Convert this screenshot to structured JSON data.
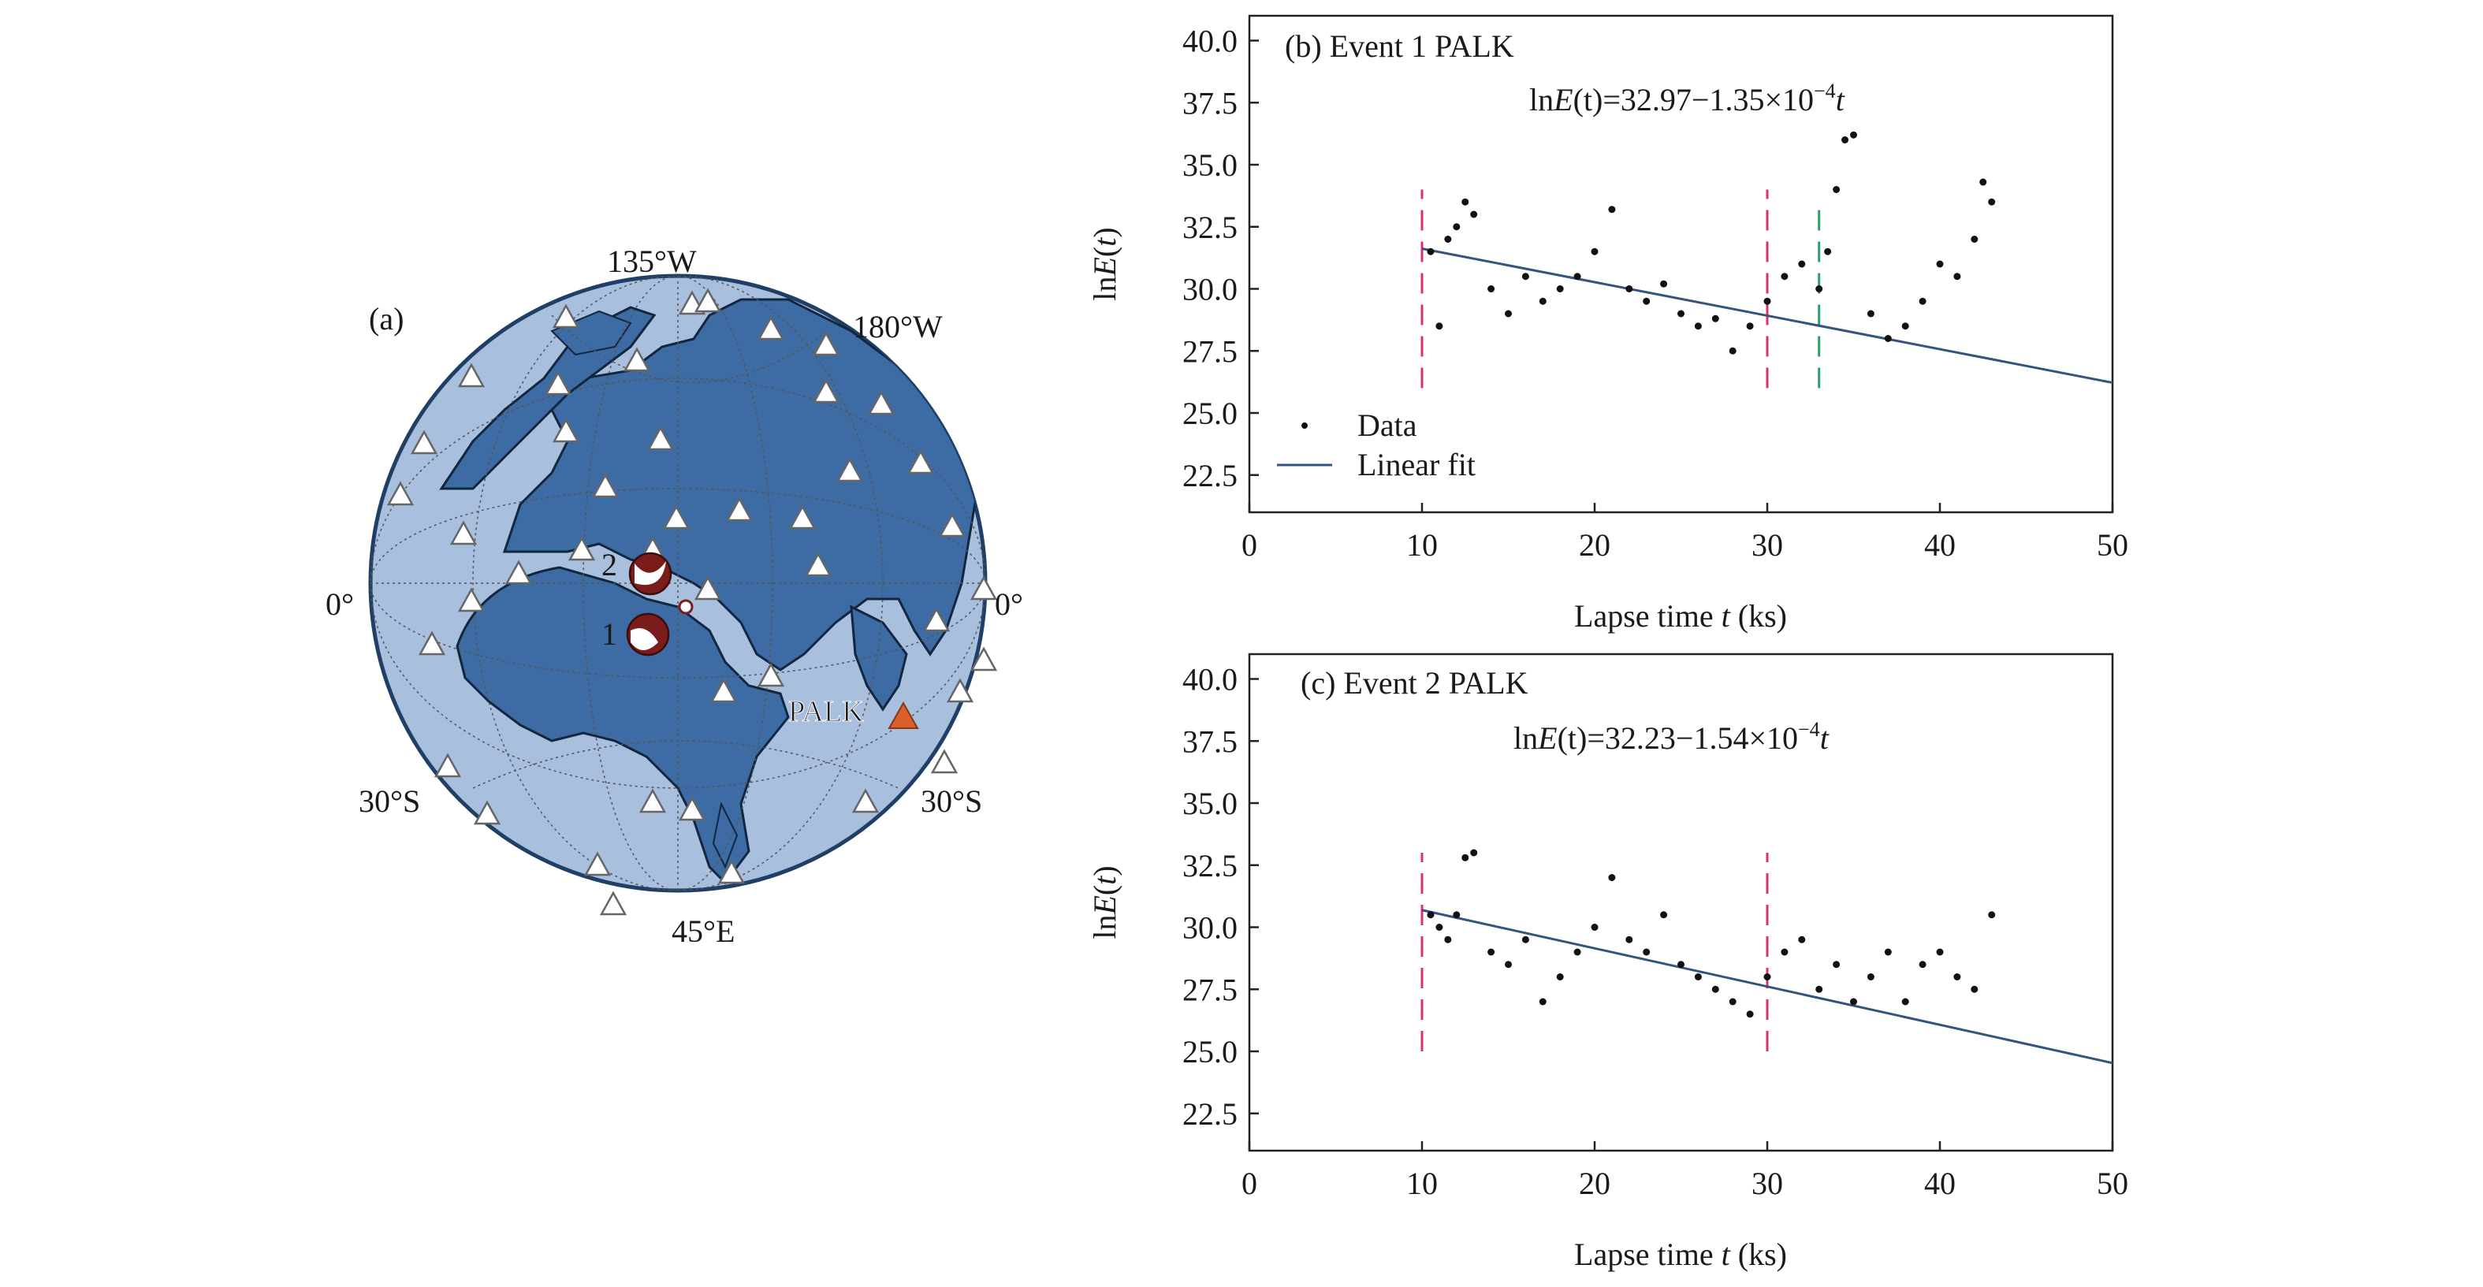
{
  "map": {
    "panel_label": "(a)",
    "lon_labels": [
      "135°W",
      "180°W",
      "0°",
      "0°",
      "45°E"
    ],
    "lat_labels": [
      "30°S",
      "30°S"
    ],
    "station_name": "PALK",
    "event_labels": [
      "1",
      "2"
    ],
    "colors": {
      "land": "#3d6ba3",
      "ocean": "#a9bfde",
      "station": "#d95f2b",
      "event": "#7a1c1c"
    }
  },
  "chart_data": [
    {
      "type": "scatter",
      "panel_label": "(b) Event 1 PALK",
      "equation": {
        "pre": "ln",
        "E": "E",
        "t1": "(t)",
        "mid": "=32.97−1.35×10",
        "exp": "−4",
        "t2": "t"
      },
      "xlabel_pre": "Lapse time ",
      "xlabel_var": "t",
      "xlabel_post": " (ks)",
      "ylabel": "lnE(t)",
      "xlim": [
        0,
        50
      ],
      "ylim": [
        21.0,
        41.0
      ],
      "xticks": [
        0,
        10,
        20,
        30,
        40,
        50
      ],
      "yticks": [
        22.5,
        25.0,
        27.5,
        30.0,
        32.5,
        35.0,
        37.5,
        40.0
      ],
      "fit": {
        "intercept": 32.97,
        "slope_per_ks": -0.135
      },
      "markers": [
        {
          "x": 10,
          "y0": 26.0,
          "y1": 34.0,
          "color": "#d6336c"
        },
        {
          "x": 30,
          "y0": 26.0,
          "y1": 34.0,
          "color": "#d6336c"
        },
        {
          "x": 33,
          "y0": 26.0,
          "y1": 33.5,
          "color": "#2e9e6b"
        }
      ],
      "legend": {
        "data_label": "Data",
        "fit_label": "Linear fit",
        "position": "lower-left"
      },
      "series": [
        {
          "name": "Data",
          "x": [
            10.5,
            11.0,
            11.5,
            12.0,
            12.5,
            13.0,
            14.0,
            15.0,
            16.0,
            17.0,
            18.0,
            19.0,
            20.0,
            21.0,
            22.0,
            23.0,
            24.0,
            25.0,
            26.0,
            27.0,
            28.0,
            29.0,
            30.0,
            31.0,
            32.0,
            33.0,
            33.5,
            34.0,
            34.5,
            35.0,
            36.0,
            37.0,
            38.0,
            39.0,
            40.0,
            41.0,
            42.0,
            42.5,
            43.0
          ],
          "y": [
            31.5,
            28.5,
            32.0,
            32.5,
            33.5,
            33.0,
            30.0,
            29.0,
            30.5,
            29.5,
            30.0,
            30.5,
            31.5,
            33.2,
            30.0,
            29.5,
            30.2,
            29.0,
            28.5,
            28.8,
            27.5,
            28.5,
            29.5,
            30.5,
            31.0,
            30.0,
            31.5,
            34.0,
            36.0,
            36.2,
            29.0,
            28.0,
            28.5,
            29.5,
            31.0,
            30.5,
            32.0,
            34.3,
            33.5
          ]
        }
      ]
    },
    {
      "type": "scatter",
      "panel_label": "(c) Event 2 PALK",
      "equation": {
        "pre": "ln",
        "E": "E",
        "t1": "(t)",
        "mid": "=32.23−1.54×10",
        "exp": "−4",
        "t2": "t"
      },
      "xlabel_pre": "Lapse time ",
      "xlabel_var": "t",
      "xlabel_post": " (ks)",
      "ylabel": "lnE(t)",
      "xlim": [
        0,
        50
      ],
      "ylim": [
        21.0,
        41.0
      ],
      "xticks": [
        0,
        10,
        20,
        30,
        40,
        50
      ],
      "yticks": [
        22.5,
        25.0,
        27.5,
        30.0,
        32.5,
        35.0,
        37.5,
        40.0
      ],
      "fit": {
        "intercept": 32.23,
        "slope_per_ks": -0.154
      },
      "markers": [
        {
          "x": 10,
          "y0": 25.0,
          "y1": 33.0,
          "color": "#d6336c"
        },
        {
          "x": 30,
          "y0": 25.0,
          "y1": 33.0,
          "color": "#d6336c"
        }
      ],
      "series": [
        {
          "name": "Data",
          "x": [
            10.5,
            11.0,
            11.5,
            12.0,
            12.5,
            13.0,
            14.0,
            15.0,
            16.0,
            17.0,
            18.0,
            19.0,
            20.0,
            21.0,
            22.0,
            23.0,
            24.0,
            25.0,
            26.0,
            27.0,
            28.0,
            29.0,
            30.0,
            31.0,
            32.0,
            33.0,
            34.0,
            35.0,
            36.0,
            37.0,
            38.0,
            39.0,
            40.0,
            41.0,
            42.0,
            43.0
          ],
          "y": [
            30.5,
            30.0,
            29.5,
            30.5,
            32.8,
            33.0,
            29.0,
            28.5,
            29.5,
            27.0,
            28.0,
            29.0,
            30.0,
            32.0,
            29.5,
            29.0,
            30.5,
            28.5,
            28.0,
            27.5,
            27.0,
            26.5,
            28.0,
            29.0,
            29.5,
            27.5,
            28.5,
            27.0,
            28.0,
            29.0,
            27.0,
            28.5,
            29.0,
            28.0,
            27.5,
            30.5
          ]
        }
      ]
    }
  ]
}
